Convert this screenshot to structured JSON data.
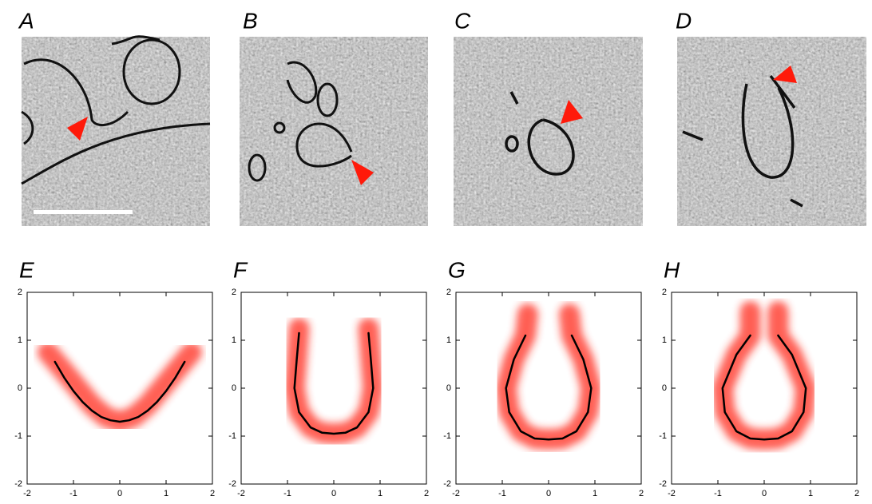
{
  "micrographs": [
    {
      "label": "A"
    },
    {
      "label": "B"
    },
    {
      "label": "C"
    },
    {
      "label": "D"
    }
  ],
  "chart_data": [
    {
      "type": "scatter",
      "title": "E",
      "xlim": [
        -2,
        2
      ],
      "ylim": [
        -2,
        2
      ],
      "xticks": [
        -2,
        -1,
        0,
        1,
        2
      ],
      "yticks": [
        -2,
        -1,
        0,
        1,
        2
      ],
      "series": [
        {
          "type": "cloud",
          "color": "#ff2a1a",
          "x": [
            -1.55,
            -1.2,
            -0.9,
            -0.6,
            -0.3,
            0,
            0.3,
            0.6,
            0.9,
            1.2,
            1.55
          ],
          "values": [
            0.75,
            0.35,
            0.0,
            -0.35,
            -0.6,
            -0.7,
            -0.6,
            -0.35,
            0.0,
            0.35,
            0.75
          ]
        },
        {
          "type": "line",
          "color": "#000000",
          "x": [
            -1.4,
            -1.2,
            -1.0,
            -0.8,
            -0.6,
            -0.4,
            -0.2,
            0,
            0.2,
            0.4,
            0.6,
            0.8,
            1.0,
            1.2,
            1.4
          ],
          "values": [
            0.55,
            0.22,
            -0.06,
            -0.29,
            -0.47,
            -0.6,
            -0.67,
            -0.7,
            -0.67,
            -0.6,
            -0.47,
            -0.29,
            -0.06,
            0.22,
            0.55
          ]
        }
      ]
    },
    {
      "type": "scatter",
      "title": "F",
      "xlim": [
        -2,
        2
      ],
      "ylim": [
        -2,
        2
      ],
      "xticks": [
        -2,
        -1,
        0,
        1,
        2
      ],
      "yticks": [
        -2,
        -1,
        0,
        1,
        2
      ],
      "series": [
        {
          "type": "cloud",
          "color": "#ff2a1a",
          "x": [
            -0.75,
            -0.8,
            -0.85,
            -0.75,
            -0.5,
            -0.25,
            0,
            0.25,
            0.5,
            0.75,
            0.85,
            0.8,
            0.75
          ],
          "values": [
            1.25,
            0.6,
            0,
            -0.5,
            -0.82,
            -0.93,
            -0.95,
            -0.93,
            -0.82,
            -0.5,
            0,
            0.6,
            1.25
          ]
        },
        {
          "type": "line",
          "color": "#000000",
          "x": [
            -0.75,
            -0.8,
            -0.85,
            -0.75,
            -0.5,
            -0.25,
            0,
            0.25,
            0.5,
            0.75,
            0.85,
            0.8,
            0.75
          ],
          "values": [
            1.15,
            0.6,
            0,
            -0.5,
            -0.82,
            -0.93,
            -0.95,
            -0.93,
            -0.82,
            -0.5,
            0,
            0.6,
            1.15
          ]
        }
      ]
    },
    {
      "type": "scatter",
      "title": "G",
      "xlim": [
        -2,
        2
      ],
      "ylim": [
        -2,
        2
      ],
      "xticks": [
        -2,
        -1,
        0,
        1,
        2
      ],
      "yticks": [
        -2,
        -1,
        0,
        1,
        2
      ],
      "series": [
        {
          "type": "cloud",
          "color": "#ff2a1a",
          "x": [
            -0.45,
            -0.5,
            -0.75,
            -0.92,
            -0.85,
            -0.6,
            -0.3,
            0,
            0.3,
            0.6,
            0.85,
            0.92,
            0.75,
            0.5,
            0.45
          ],
          "values": [
            1.55,
            1.1,
            0.6,
            0,
            -0.5,
            -0.9,
            -1.05,
            -1.07,
            -1.05,
            -0.9,
            -0.5,
            0,
            0.6,
            1.1,
            1.55
          ]
        },
        {
          "type": "line",
          "color": "#000000",
          "x": [
            -0.5,
            -0.75,
            -0.92,
            -0.85,
            -0.6,
            -0.3,
            0,
            0.3,
            0.6,
            0.85,
            0.92,
            0.75,
            0.5
          ],
          "values": [
            1.1,
            0.6,
            0,
            -0.5,
            -0.9,
            -1.05,
            -1.07,
            -1.05,
            -0.9,
            -0.5,
            0,
            0.6,
            1.1
          ]
        }
      ]
    },
    {
      "type": "scatter",
      "title": "H",
      "xlim": [
        -2,
        2
      ],
      "ylim": [
        -2,
        2
      ],
      "xticks": [
        -2,
        -1,
        0,
        1,
        2
      ],
      "yticks": [
        -2,
        -1,
        0,
        1,
        2
      ],
      "series": [
        {
          "type": "cloud",
          "color": "#ff2a1a",
          "x": [
            -0.3,
            -0.3,
            -0.6,
            -0.9,
            -0.85,
            -0.6,
            -0.3,
            0,
            0.3,
            0.6,
            0.85,
            0.9,
            0.6,
            0.3,
            0.3
          ],
          "values": [
            1.6,
            1.1,
            0.7,
            0,
            -0.5,
            -0.9,
            -1.05,
            -1.07,
            -1.05,
            -0.9,
            -0.5,
            0,
            0.7,
            1.1,
            1.6
          ]
        },
        {
          "type": "line",
          "color": "#000000",
          "x": [
            -0.3,
            -0.6,
            -0.9,
            -0.85,
            -0.6,
            -0.3,
            0,
            0.3,
            0.6,
            0.85,
            0.9,
            0.6,
            0.3
          ],
          "values": [
            1.1,
            0.7,
            0,
            -0.5,
            -0.9,
            -1.05,
            -1.07,
            -1.05,
            -0.9,
            -0.5,
            0,
            0.7,
            1.1
          ]
        }
      ]
    }
  ]
}
